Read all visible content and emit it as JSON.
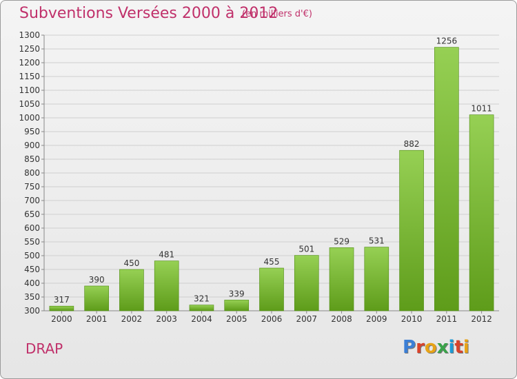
{
  "header": {
    "title": "Subventions Versées 2000 à 2012",
    "subtitle": "(en milliers d'€)"
  },
  "footer": {
    "commune": "DRAP",
    "logo_text": "Proxiti"
  },
  "colors": {
    "title": "#c0306a",
    "bar_top": "#96d054",
    "bar_bottom": "#5e9c1a",
    "logo": [
      "#3b7fd6",
      "#d9432b",
      "#e8a317",
      "#3aa34a",
      "#1e9bd6",
      "#d9432b",
      "#e8a317"
    ]
  },
  "chart_data": {
    "type": "bar",
    "title": "Subventions Versées 2000 à 2012",
    "subtitle": "(en milliers d'€)",
    "xlabel": "",
    "ylabel": "",
    "categories": [
      "2000",
      "2001",
      "2002",
      "2003",
      "2004",
      "2005",
      "2006",
      "2007",
      "2008",
      "2009",
      "2010",
      "2011",
      "2012"
    ],
    "values": [
      317,
      390,
      450,
      481,
      321,
      339,
      455,
      501,
      529,
      531,
      882,
      1256,
      1011
    ],
    "ylim": [
      300,
      1300
    ],
    "yticks": [
      300,
      350,
      400,
      450,
      500,
      550,
      600,
      650,
      700,
      750,
      800,
      850,
      900,
      950,
      1000,
      1050,
      1100,
      1150,
      1200,
      1250,
      1300
    ],
    "grid": true,
    "legend": "none"
  }
}
